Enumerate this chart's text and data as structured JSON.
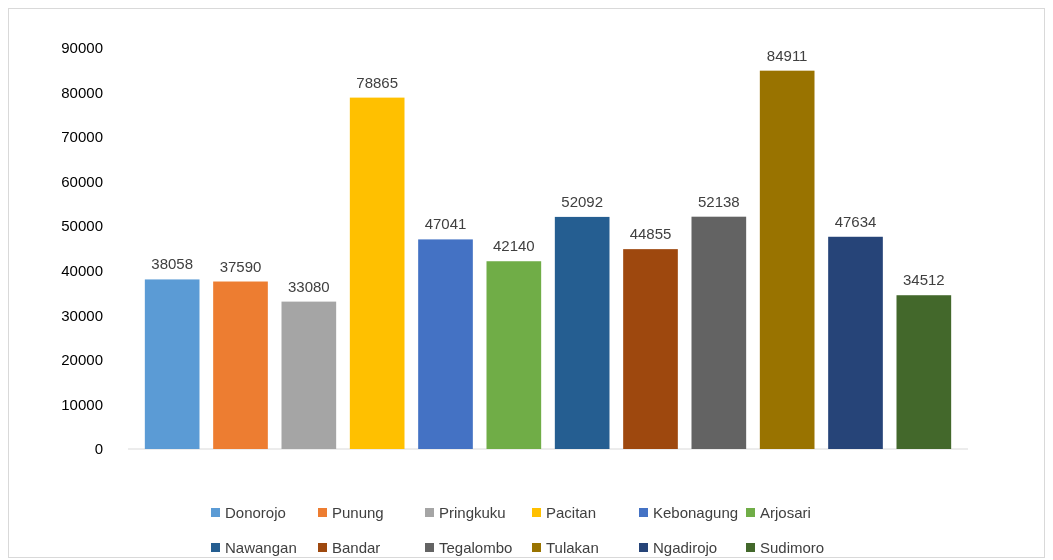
{
  "chart_data": {
    "type": "bar",
    "categories": [
      null,
      null,
      null,
      null,
      null,
      null,
      null,
      null,
      null,
      null,
      null,
      null
    ],
    "series": [
      {
        "name": "Donorojo",
        "color": "#5b9bd5",
        "values": [
          38058,
          null,
          null,
          null,
          null,
          null,
          null,
          null,
          null,
          null,
          null,
          null
        ]
      },
      {
        "name": "Punung",
        "color": "#ed7d31",
        "values": [
          null,
          37590,
          null,
          null,
          null,
          null,
          null,
          null,
          null,
          null,
          null,
          null
        ]
      },
      {
        "name": "Pringkuku",
        "color": "#a5a5a5",
        "values": [
          null,
          null,
          33080,
          null,
          null,
          null,
          null,
          null,
          null,
          null,
          null,
          null
        ]
      },
      {
        "name": "Pacitan",
        "color": "#ffc000",
        "values": [
          null,
          null,
          null,
          78865,
          null,
          null,
          null,
          null,
          null,
          null,
          null,
          null
        ]
      },
      {
        "name": "Kebonagung",
        "color": "#4472c4",
        "values": [
          null,
          null,
          null,
          null,
          47041,
          null,
          null,
          null,
          null,
          null,
          null,
          null
        ]
      },
      {
        "name": "Arjosari",
        "color": "#70ad47",
        "values": [
          null,
          null,
          null,
          null,
          null,
          42140,
          null,
          null,
          null,
          null,
          null,
          null
        ]
      },
      {
        "name": "Nawangan",
        "color": "#255e91",
        "values": [
          null,
          null,
          null,
          null,
          null,
          null,
          52092,
          null,
          null,
          null,
          null,
          null
        ]
      },
      {
        "name": "Bandar",
        "color": "#9e480e",
        "values": [
          null,
          null,
          null,
          null,
          null,
          null,
          null,
          44855,
          null,
          null,
          null,
          null
        ]
      },
      {
        "name": "Tegalombo",
        "color": "#636363",
        "values": [
          null,
          null,
          null,
          null,
          null,
          null,
          null,
          null,
          52138,
          null,
          null,
          null
        ]
      },
      {
        "name": "Tulakan",
        "color": "#997300",
        "values": [
          null,
          null,
          null,
          null,
          null,
          null,
          null,
          null,
          null,
          84911,
          null,
          null
        ]
      },
      {
        "name": "Ngadirojo",
        "color": "#264478",
        "values": [
          null,
          null,
          null,
          null,
          null,
          null,
          null,
          null,
          null,
          null,
          47634,
          null
        ]
      },
      {
        "name": "Sudimoro",
        "color": "#43682b",
        "values": [
          null,
          null,
          null,
          null,
          null,
          null,
          null,
          null,
          null,
          null,
          null,
          34512
        ]
      }
    ],
    "ylim": [
      0,
      90000
    ],
    "yticks": [
      0,
      10000,
      20000,
      30000,
      40000,
      50000,
      60000,
      70000,
      80000,
      90000
    ],
    "data_labels": true,
    "legend": "bottom",
    "tick_labels": "y",
    "grid": false
  }
}
